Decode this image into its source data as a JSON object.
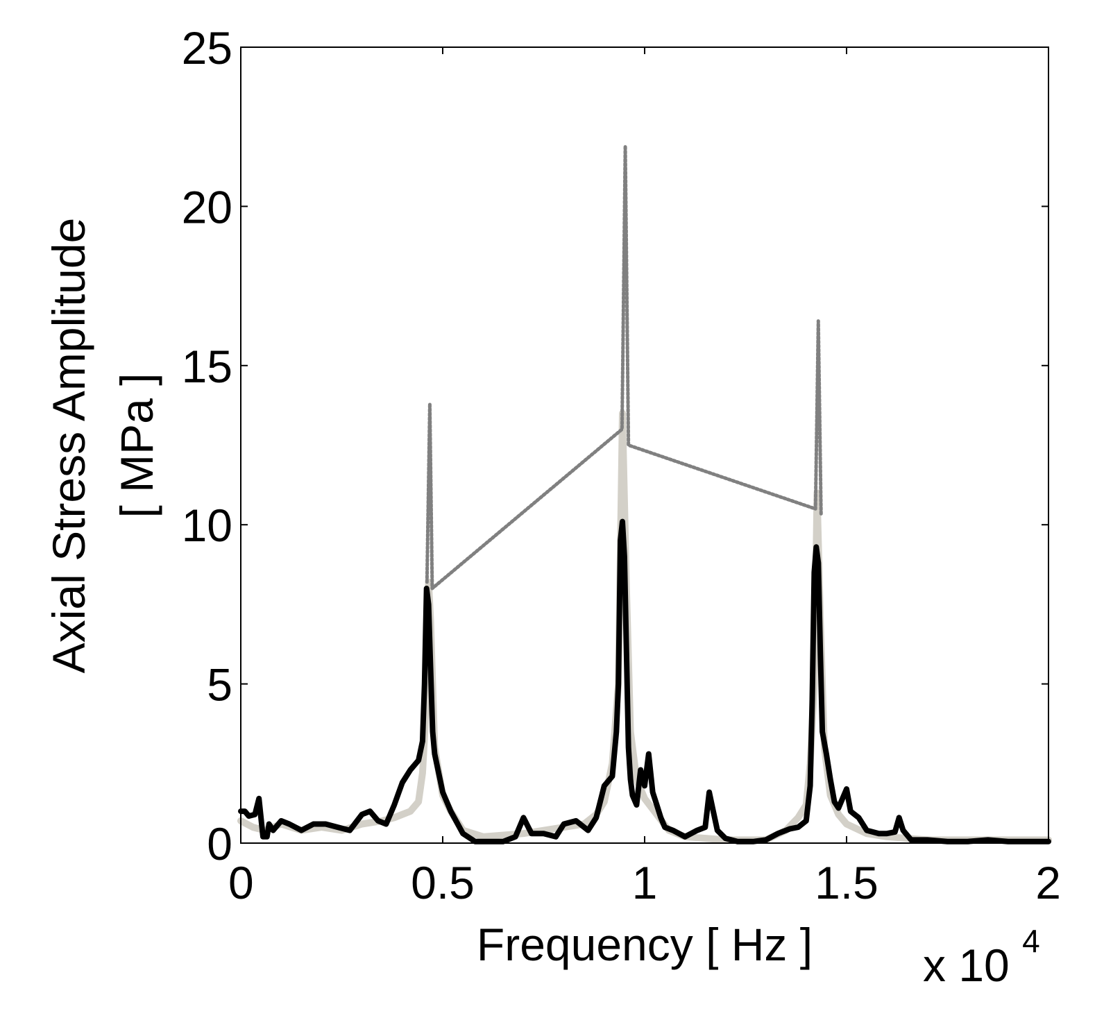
{
  "chart_data": {
    "type": "line",
    "title": "",
    "xlabel": "Frequency [ Hz ]",
    "ylabel_lines": [
      "Axial Stress Amplitude",
      "[ MPa ]"
    ],
    "x_multiplier": {
      "base": "x 10",
      "exponent": "4"
    },
    "xlim": [
      0,
      2
    ],
    "ylim": [
      0,
      25
    ],
    "x_ticks": [
      0,
      0.5,
      1,
      1.5,
      2
    ],
    "x_tick_labels": [
      "0",
      "0.5",
      "1",
      "1.5",
      "2"
    ],
    "y_ticks": [
      0,
      5,
      10,
      15,
      20,
      25
    ],
    "y_tick_labels": [
      "0",
      "5",
      "10",
      "15",
      "20",
      "25"
    ],
    "grid": false,
    "series": [
      {
        "style": "light-thick",
        "color": "#d3d0c8",
        "points": [
          [
            0,
            0.7
          ],
          [
            0.03,
            0.5
          ],
          [
            0.06,
            0.4
          ],
          [
            0.1,
            0.6
          ],
          [
            0.15,
            0.4
          ],
          [
            0.2,
            0.5
          ],
          [
            0.25,
            0.4
          ],
          [
            0.3,
            0.6
          ],
          [
            0.35,
            0.7
          ],
          [
            0.38,
            0.8
          ],
          [
            0.4,
            0.9
          ],
          [
            0.42,
            1.0
          ],
          [
            0.44,
            1.3
          ],
          [
            0.45,
            2.2
          ],
          [
            0.46,
            4.5
          ],
          [
            0.465,
            8.2
          ],
          [
            0.47,
            7.0
          ],
          [
            0.48,
            3.0
          ],
          [
            0.5,
            1.5
          ],
          [
            0.52,
            1.0
          ],
          [
            0.55,
            0.4
          ],
          [
            0.6,
            0.2
          ],
          [
            0.7,
            0.3
          ],
          [
            0.8,
            0.5
          ],
          [
            0.85,
            0.6
          ],
          [
            0.88,
            0.9
          ],
          [
            0.9,
            1.3
          ],
          [
            0.92,
            2.5
          ],
          [
            0.935,
            5.0
          ],
          [
            0.945,
            13.5
          ],
          [
            0.955,
            8.0
          ],
          [
            0.965,
            3.5
          ],
          [
            0.98,
            2.0
          ],
          [
            1.0,
            1.4
          ],
          [
            1.03,
            0.9
          ],
          [
            1.06,
            0.4
          ],
          [
            1.1,
            0.2
          ],
          [
            1.2,
            0.1
          ],
          [
            1.3,
            0.1
          ],
          [
            1.35,
            0.4
          ],
          [
            1.38,
            0.8
          ],
          [
            1.4,
            1.2
          ],
          [
            1.41,
            2.5
          ],
          [
            1.42,
            5.0
          ],
          [
            1.427,
            11.0
          ],
          [
            1.435,
            7.0
          ],
          [
            1.445,
            3.0
          ],
          [
            1.46,
            1.5
          ],
          [
            1.48,
            0.9
          ],
          [
            1.5,
            0.6
          ],
          [
            1.55,
            0.3
          ],
          [
            1.6,
            0.2
          ],
          [
            1.7,
            0.1
          ],
          [
            1.8,
            0.1
          ],
          [
            1.9,
            0.1
          ],
          [
            2.0,
            0.1
          ]
        ]
      },
      {
        "style": "dotted",
        "color": "#808080",
        "points": [
          [
            0.461,
            8.2
          ],
          [
            0.468,
            13.8
          ],
          [
            0.474,
            8.0
          ],
          [
            0.944,
            13.0
          ],
          [
            0.952,
            21.9
          ],
          [
            0.96,
            12.5
          ],
          [
            1.423,
            10.5
          ],
          [
            1.43,
            16.4
          ],
          [
            1.437,
            10.3
          ]
        ]
      },
      {
        "style": "black-thick",
        "color": "#000000",
        "points": [
          [
            0,
            1.0
          ],
          [
            0.01,
            1.0
          ],
          [
            0.02,
            0.85
          ],
          [
            0.035,
            0.9
          ],
          [
            0.045,
            1.4
          ],
          [
            0.055,
            0.2
          ],
          [
            0.065,
            0.2
          ],
          [
            0.07,
            0.6
          ],
          [
            0.08,
            0.4
          ],
          [
            0.1,
            0.7
          ],
          [
            0.12,
            0.6
          ],
          [
            0.15,
            0.4
          ],
          [
            0.18,
            0.6
          ],
          [
            0.21,
            0.6
          ],
          [
            0.24,
            0.5
          ],
          [
            0.27,
            0.4
          ],
          [
            0.3,
            0.9
          ],
          [
            0.32,
            1.0
          ],
          [
            0.34,
            0.7
          ],
          [
            0.36,
            0.6
          ],
          [
            0.38,
            1.2
          ],
          [
            0.4,
            1.9
          ],
          [
            0.42,
            2.3
          ],
          [
            0.44,
            2.6
          ],
          [
            0.45,
            3.2
          ],
          [
            0.455,
            5.0
          ],
          [
            0.46,
            8.0
          ],
          [
            0.465,
            7.5
          ],
          [
            0.47,
            5.5
          ],
          [
            0.475,
            3.5
          ],
          [
            0.48,
            2.8
          ],
          [
            0.49,
            2.2
          ],
          [
            0.5,
            1.6
          ],
          [
            0.52,
            1.0
          ],
          [
            0.55,
            0.3
          ],
          [
            0.58,
            0.05
          ],
          [
            0.62,
            0.05
          ],
          [
            0.65,
            0.05
          ],
          [
            0.68,
            0.2
          ],
          [
            0.7,
            0.8
          ],
          [
            0.72,
            0.3
          ],
          [
            0.75,
            0.3
          ],
          [
            0.78,
            0.2
          ],
          [
            0.8,
            0.6
          ],
          [
            0.83,
            0.7
          ],
          [
            0.86,
            0.4
          ],
          [
            0.88,
            0.8
          ],
          [
            0.9,
            1.8
          ],
          [
            0.92,
            2.1
          ],
          [
            0.93,
            3.5
          ],
          [
            0.935,
            5.0
          ],
          [
            0.94,
            9.5
          ],
          [
            0.945,
            10.1
          ],
          [
            0.95,
            9.0
          ],
          [
            0.955,
            6.0
          ],
          [
            0.96,
            3.0
          ],
          [
            0.965,
            2.0
          ],
          [
            0.97,
            1.5
          ],
          [
            0.98,
            1.2
          ],
          [
            0.99,
            2.3
          ],
          [
            1.0,
            1.8
          ],
          [
            1.01,
            2.8
          ],
          [
            1.02,
            1.6
          ],
          [
            1.03,
            1.2
          ],
          [
            1.04,
            0.8
          ],
          [
            1.05,
            0.5
          ],
          [
            1.07,
            0.4
          ],
          [
            1.1,
            0.2
          ],
          [
            1.13,
            0.4
          ],
          [
            1.15,
            0.5
          ],
          [
            1.16,
            1.6
          ],
          [
            1.17,
            1.0
          ],
          [
            1.18,
            0.4
          ],
          [
            1.2,
            0.15
          ],
          [
            1.23,
            0.05
          ],
          [
            1.27,
            0.05
          ],
          [
            1.3,
            0.1
          ],
          [
            1.33,
            0.3
          ],
          [
            1.36,
            0.45
          ],
          [
            1.38,
            0.5
          ],
          [
            1.4,
            0.7
          ],
          [
            1.41,
            1.8
          ],
          [
            1.415,
            4.5
          ],
          [
            1.42,
            8.5
          ],
          [
            1.425,
            9.3
          ],
          [
            1.43,
            8.8
          ],
          [
            1.435,
            6.0
          ],
          [
            1.44,
            3.5
          ],
          [
            1.45,
            2.8
          ],
          [
            1.46,
            2.0
          ],
          [
            1.47,
            1.3
          ],
          [
            1.48,
            1.1
          ],
          [
            1.5,
            1.7
          ],
          [
            1.51,
            1.0
          ],
          [
            1.53,
            0.8
          ],
          [
            1.55,
            0.4
          ],
          [
            1.58,
            0.3
          ],
          [
            1.6,
            0.3
          ],
          [
            1.62,
            0.35
          ],
          [
            1.63,
            0.8
          ],
          [
            1.64,
            0.4
          ],
          [
            1.66,
            0.1
          ],
          [
            1.7,
            0.1
          ],
          [
            1.75,
            0.05
          ],
          [
            1.8,
            0.05
          ],
          [
            1.85,
            0.1
          ],
          [
            1.9,
            0.05
          ],
          [
            1.95,
            0.05
          ],
          [
            2.0,
            0.05
          ]
        ]
      }
    ]
  }
}
